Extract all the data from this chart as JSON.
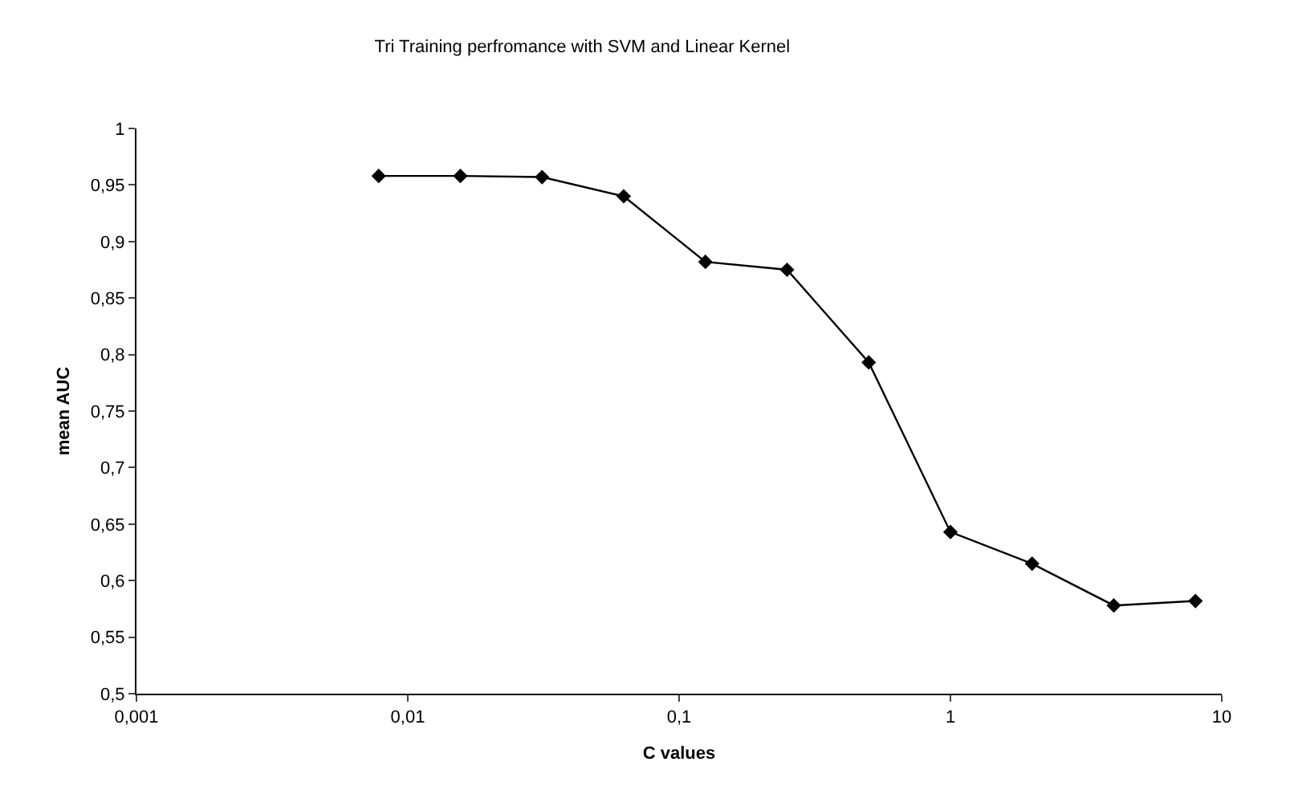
{
  "chart_data": {
    "type": "line",
    "title": "Tri Training perfromance with SVM and Linear Kernel",
    "xlabel": "C values",
    "ylabel": "mean AUC",
    "x": [
      0.0078125,
      0.015625,
      0.03125,
      0.0625,
      0.125,
      0.25,
      0.5,
      1,
      2,
      4,
      8
    ],
    "series": [
      {
        "color": "#000000",
        "values": [
          0.958,
          0.958,
          0.957,
          0.94,
          0.882,
          0.875,
          0.793,
          0.643,
          0.615,
          0.578,
          0.582
        ]
      }
    ],
    "log": "x",
    "xlim": [
      0.001,
      10
    ],
    "xticks": [
      {
        "value": 0.001,
        "label": "0,001"
      },
      {
        "value": 0.01,
        "label": "0,01"
      },
      {
        "value": 0.1,
        "label": "0,1"
      },
      1,
      10
    ],
    "ylim": [
      0.5,
      1
    ],
    "yticks": [
      {
        "value": 0.5,
        "label": "0,5"
      },
      {
        "value": 0.55,
        "label": "0,55"
      },
      {
        "value": 0.6,
        "label": "0,6"
      },
      {
        "value": 0.65,
        "label": "0,65"
      },
      {
        "value": 0.7,
        "label": "0,7"
      },
      {
        "value": 0.75,
        "label": "0,75"
      },
      {
        "value": 0.8,
        "label": "0,8"
      },
      {
        "value": 0.85,
        "label": "0,85"
      },
      {
        "value": 0.9,
        "label": "0,9"
      },
      {
        "value": 0.95,
        "label": "0,95"
      },
      1
    ],
    "marker": "diamond",
    "line_style": "solid",
    "grid": false
  }
}
